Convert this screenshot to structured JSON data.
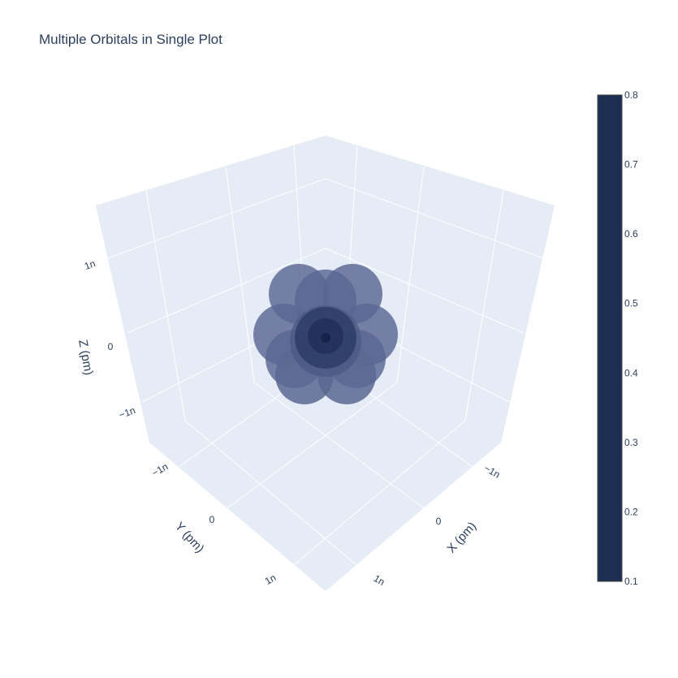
{
  "title": "Multiple Orbitals in Single Plot",
  "chart_data": {
    "type": "isosurface-3d",
    "title": "Multiple Orbitals in Single Plot",
    "scene": {
      "background_color": "#e5ecf6",
      "grid_color": "#ffffff",
      "xaxis": {
        "title": "X (pm)",
        "ticks": [
          "−1n",
          "0",
          "1n"
        ]
      },
      "yaxis": {
        "title": "Y (pm)",
        "ticks": [
          "−1n",
          "0",
          "1n"
        ]
      },
      "zaxis": {
        "title": "Z (pm)",
        "ticks": [
          "−1n",
          "0",
          "1n"
        ]
      }
    },
    "colorbar": {
      "range": [
        0.1,
        0.8
      ],
      "ticks": [
        "0.8",
        "0.7",
        "0.6",
        "0.5",
        "0.4",
        "0.3",
        "0.2",
        "0.1"
      ],
      "color": "#1c2f52"
    },
    "surface_color": "#5a6792",
    "core_color": "#2b3a66"
  }
}
